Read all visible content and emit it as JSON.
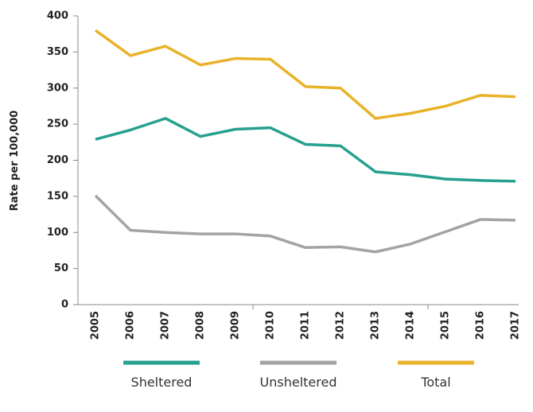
{
  "chart_data": {
    "type": "line",
    "y_label": "Rate per 100,000",
    "categories": [
      "2005",
      "2006",
      "2007",
      "2008",
      "2009",
      "2010",
      "2011",
      "2012",
      "2013",
      "2014",
      "2015",
      "2016",
      "2017"
    ],
    "series": [
      {
        "name": "Sheltered",
        "color": "#27a08f",
        "values": [
          229,
          242,
          258,
          233,
          243,
          245,
          222,
          220,
          184,
          180,
          174,
          172,
          171
        ]
      },
      {
        "name": "Unsheltered",
        "color": "#a3a3a3",
        "values": [
          151,
          103,
          100,
          98,
          98,
          95,
          79,
          80,
          73,
          84,
          101,
          118,
          117
        ]
      },
      {
        "name": "Total",
        "color": "#e8b32a",
        "values": [
          380,
          345,
          358,
          332,
          341,
          340,
          302,
          300,
          258,
          265,
          275,
          290,
          288
        ]
      }
    ],
    "ylim": [
      0,
      400
    ],
    "yticks": [
      0,
      50,
      100,
      150,
      200,
      250,
      300,
      350,
      400
    ],
    "legend": "bottom"
  }
}
